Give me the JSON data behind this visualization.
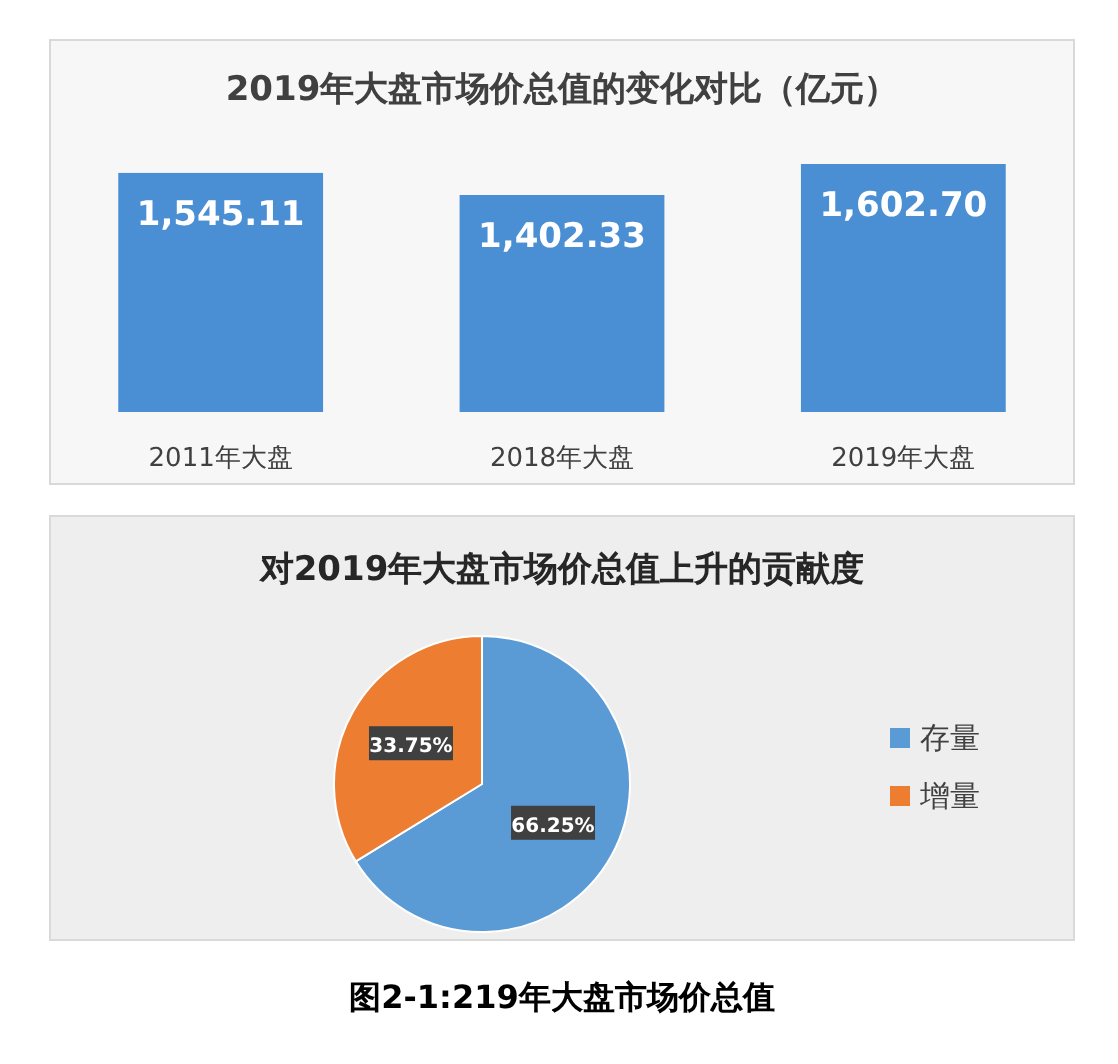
{
  "chart_data": [
    {
      "type": "bar",
      "title": "2019年大盘市场价总值的变化对比（亿元）",
      "categories": [
        "2011年大盘",
        "2018年大盘",
        "2019年大盘"
      ],
      "values": [
        1545.11,
        1402.33,
        1602.7
      ],
      "value_labels": [
        "1,545.11",
        "1,402.33",
        "1,602.70"
      ],
      "color": "#4a8fd4"
    },
    {
      "type": "pie",
      "title": "对2019年大盘市场价总值上升的贡献度",
      "categories": [
        "存量",
        "增量"
      ],
      "values": [
        66.25,
        33.75
      ],
      "value_labels": [
        "66.25%",
        "33.75%"
      ],
      "colors": [
        "#5b9bd5",
        "#ed7d31"
      ],
      "legend": "right",
      "annotations": [
        "图2-1:219年大盘市场价总值"
      ]
    }
  ]
}
